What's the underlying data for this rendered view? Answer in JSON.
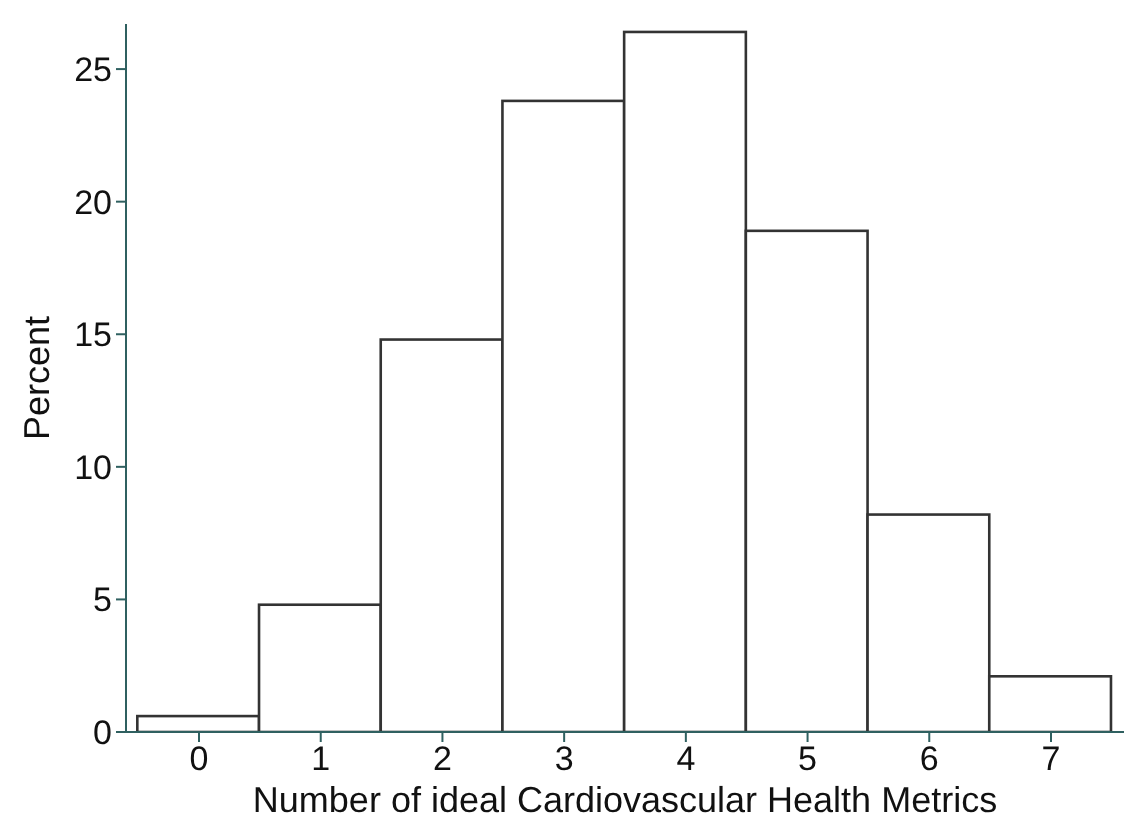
{
  "chart_data": {
    "type": "histogram",
    "xlabel": "Number of ideal Cardiovascular Health Metrics",
    "ylabel": "Percent",
    "bins": [
      -0.5,
      0.5,
      1.5,
      2.5,
      3.5,
      4.5,
      5.5,
      6.5,
      7.5
    ],
    "values": [
      0.6,
      4.8,
      14.8,
      23.8,
      26.4,
      18.9,
      8.2,
      2.1
    ],
    "color": "#ffffff",
    "xlim": [
      -0.6,
      7.6
    ],
    "xticks": [
      0,
      1,
      2,
      3,
      4,
      5,
      6,
      7
    ],
    "ylim": [
      0,
      26.7
    ],
    "yticks": [
      0,
      5,
      10,
      15,
      20,
      25
    ],
    "grid": false
  }
}
